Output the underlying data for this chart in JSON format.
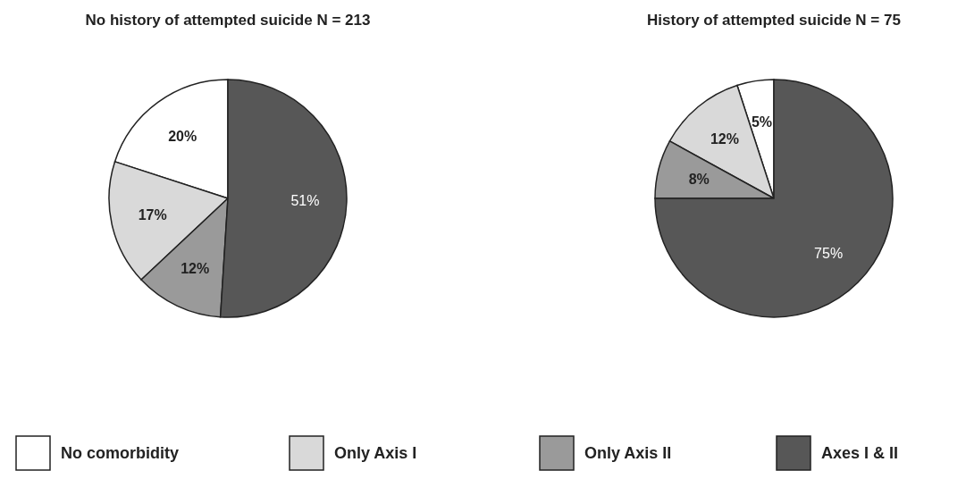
{
  "chart_data": [
    {
      "type": "pie",
      "title": "No history of attempted suicide N = 213",
      "categories": [
        "No comorbidity",
        "Only Axis I",
        "Only Axis II",
        "Axes I & II"
      ],
      "values": [
        20,
        17,
        12,
        51
      ],
      "value_labels": [
        "20%",
        "17%",
        "12%",
        "51%"
      ],
      "colors": [
        "#ffffff",
        "#d9d9d9",
        "#9a9a9a",
        "#575757"
      ],
      "legend": "bottom"
    },
    {
      "type": "pie",
      "title": "History of attempted suicide N = 75",
      "categories": [
        null,
        null,
        null,
        null
      ],
      "values": [
        5,
        12,
        8,
        75
      ],
      "value_labels": [
        "5%",
        "12%",
        "8%",
        "75%"
      ],
      "colors": [
        "#ffffff",
        "#d9d9d9",
        "#9a9a9a",
        "#575757"
      ]
    }
  ]
}
